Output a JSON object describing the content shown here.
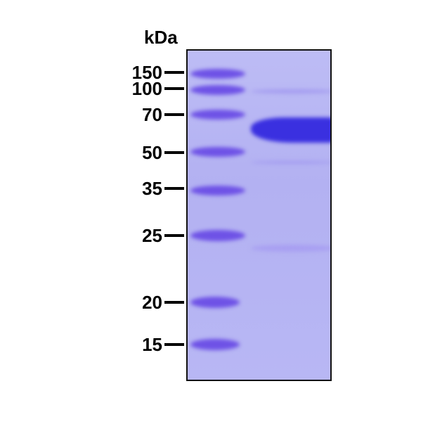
{
  "unit_label": "kDa",
  "markers": [
    "150",
    "100",
    "70",
    "50",
    "35",
    "25",
    "20",
    "15"
  ],
  "lanes": [
    "marker",
    "sample"
  ],
  "colors": {
    "gel": "#b4b2f2",
    "marker_band": "#6e52e6",
    "sample_band": "#3a30e0"
  }
}
